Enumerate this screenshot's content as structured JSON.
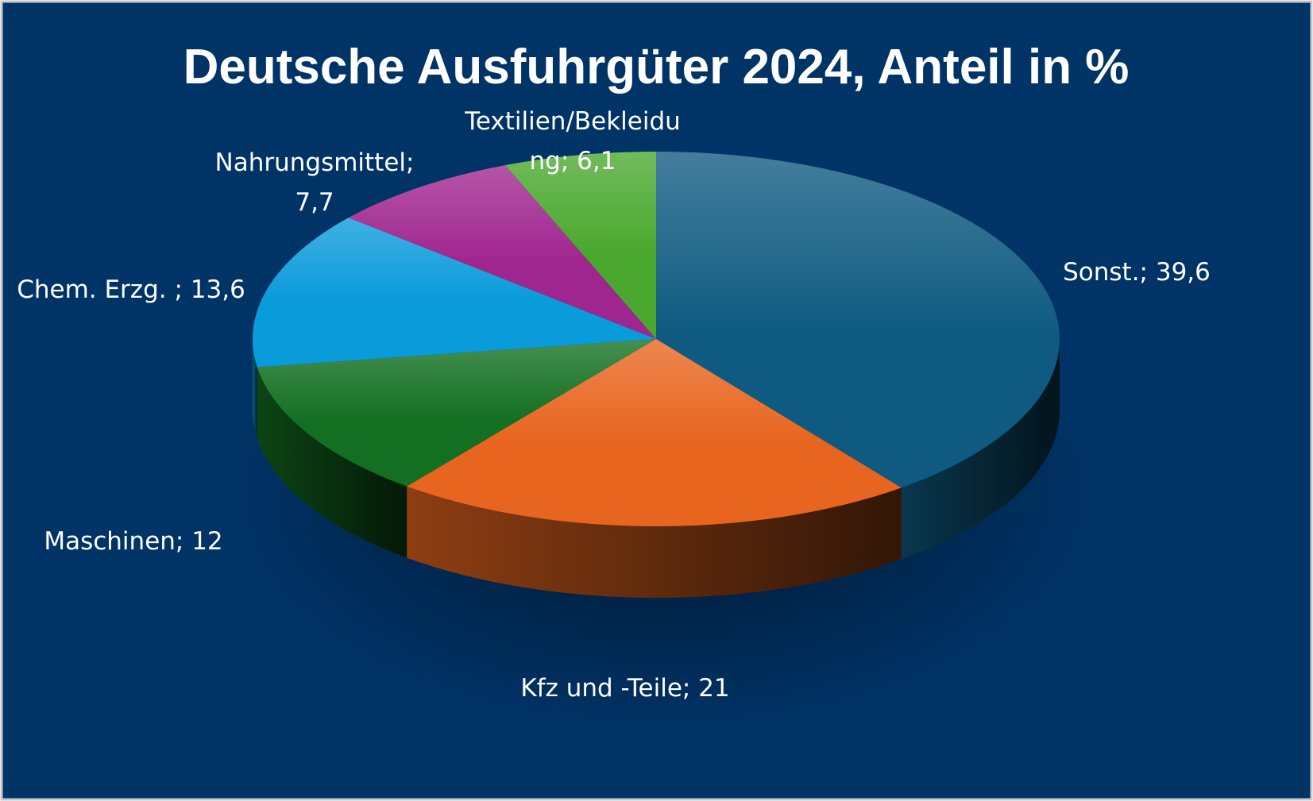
{
  "chart_data": {
    "type": "pie",
    "title": "Deutsche Ausfuhrgüter 2024, Anteil in %",
    "slices": [
      {
        "label": "Sonst.; 39,6",
        "value": 39.6,
        "color": "#0E5A80"
      },
      {
        "label": "Kfz und -Teile; 21",
        "value": 21,
        "color": "#E8651F"
      },
      {
        "label": "Maschinen; 12",
        "value": 12,
        "color": "#137022"
      },
      {
        "label": "Chem. Erzg. ; 13,6",
        "value": 13.6,
        "color": "#0A9BDB"
      },
      {
        "label": "Nahrungsmittel; 7,7",
        "value": 7.7,
        "color": "#A0268F"
      },
      {
        "label": "Textilien/Bekleidung; 6,1",
        "value": 6.1,
        "color": "#4AA82E"
      }
    ],
    "three_d": true,
    "legend": "none",
    "background": "#003366"
  }
}
